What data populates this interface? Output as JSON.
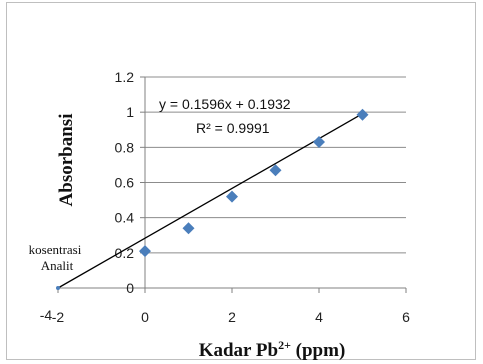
{
  "chart_data": {
    "type": "scatter",
    "ylabel": "Absorbansi",
    "xlabel_main": "Kadar Pb",
    "xlabel_sup": "2+",
    "xlabel_unit": " (ppm)",
    "xlim": [
      -2,
      6
    ],
    "ylim": [
      0,
      1.2
    ],
    "x_ticks": [
      {
        "value": -2,
        "label": "-2"
      },
      {
        "value": 0,
        "label": "0"
      },
      {
        "value": 2,
        "label": "2"
      },
      {
        "value": 4,
        "label": "4"
      },
      {
        "value": 6,
        "label": "6"
      }
    ],
    "extra_x_label": "-4",
    "y_ticks": [
      {
        "value": 0,
        "label": "0"
      },
      {
        "value": 0.2,
        "label": "0.2"
      },
      {
        "value": 0.4,
        "label": "0.4"
      },
      {
        "value": 0.6,
        "label": "0.6"
      },
      {
        "value": 0.8,
        "label": "0.8"
      },
      {
        "value": 1.0,
        "label": "1"
      },
      {
        "value": 1.2,
        "label": "1.2"
      }
    ],
    "grid": "horizontal",
    "series": [
      {
        "marker": "diamond",
        "color": "#4a7ebb",
        "points": [
          {
            "x": 0,
            "y": 0.21
          },
          {
            "x": 1,
            "y": 0.34
          },
          {
            "x": 2,
            "y": 0.52
          },
          {
            "x": 3,
            "y": 0.67
          },
          {
            "x": 4,
            "y": 0.83
          },
          {
            "x": 5,
            "y": 0.985
          }
        ]
      }
    ],
    "trendline": {
      "slope": 0.1596,
      "intercept": 0.1932,
      "x_start": -2,
      "x_end": 5,
      "color": "#000000",
      "equation": "y = 0.1596x + 0.1932",
      "r2_label": "R² = 0.9991"
    },
    "analyte_point": {
      "x": -2,
      "y": 0,
      "color": "#4a7ebb"
    },
    "annotation": {
      "line1": "kosentrasi",
      "line2": "Analit"
    }
  }
}
